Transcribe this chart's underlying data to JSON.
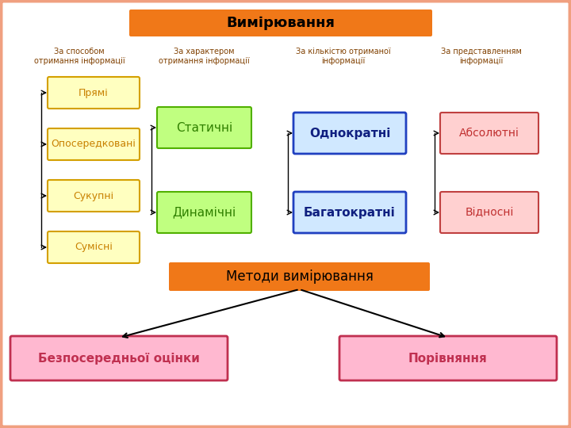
{
  "background_color": "#ffffff",
  "border_color": "#f0a080",
  "title": "Вимірювання",
  "title_box_color": "#f07818",
  "title_text_color": "#000000",
  "col_headers": [
    "За способом\nотримання інформації",
    "За характером\nотримання інформації",
    "За кількістю отриманої\nінформації",
    "За представленням\nінформації"
  ],
  "col_header_color": "#804000",
  "col1_boxes": [
    "Прямі",
    "Опосередковані",
    "Сукупні",
    "Сумісні"
  ],
  "col1_box_fill": "#ffffc0",
  "col1_box_edge": "#d4a000",
  "col1_text_color": "#c88000",
  "col2_boxes": [
    "Статичні",
    "Динамічні"
  ],
  "col2_box_fill": "#c0ff80",
  "col2_box_edge": "#50b000",
  "col2_text_color": "#308000",
  "col3_boxes": [
    "Однократні",
    "Багатократні"
  ],
  "col3_box_fill": "#d0e8ff",
  "col3_box_edge": "#2040c0",
  "col3_text_color": "#102080",
  "col4_boxes": [
    "Абсолютні",
    "Відносні"
  ],
  "col4_box_fill": "#ffd0d0",
  "col4_box_edge": "#c04040",
  "col4_text_color": "#c03030",
  "methods_title": "Методи вимірювання",
  "methods_box_color": "#f07818",
  "methods_text_color": "#000000",
  "bottom_boxes": [
    "Безпосередньої оцінки",
    "Порівняння"
  ],
  "bottom_box_fill": "#ffb8d0",
  "bottom_box_edge": "#c03050",
  "bottom_text_color": "#c03050"
}
